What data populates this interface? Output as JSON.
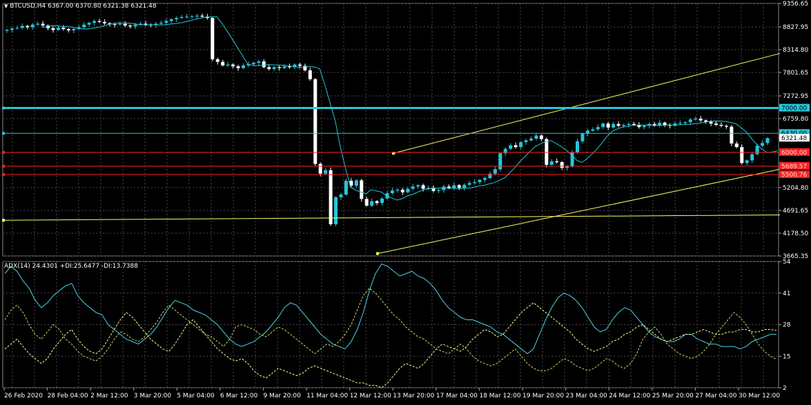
{
  "header": {
    "symbol_line": "BTCUSD,H4  6367.00 6370.80 6321.38 6321.48",
    "indicator_line": "ADX(14) 24.4301 +DI:25.6477 -DI:13.7388"
  },
  "colors": {
    "background": "#000000",
    "grid": "#4b4b4b",
    "bull_candle": "#26c6da",
    "bear_candle": "#ffffff",
    "ma_line": "#26c6da",
    "trend_line": "#ffff66",
    "level_cyan": "#26c6da",
    "level_red": "#ff2020",
    "adx_line": "#4fd3e3",
    "di_plus": "#ffff99",
    "di_minus": "#c8d86a"
  },
  "chart_data": [
    {
      "type": "candlestick",
      "ylim": [
        3665.35,
        9356.65
      ],
      "y_ticks": [
        "9356.65",
        "8827.95",
        "8314.80",
        "7801.65",
        "7272.95",
        "6759.80",
        "6321.48",
        "5204.80",
        "4691.65",
        "4178.50",
        "3665.35"
      ],
      "x_tick_labels": [
        "26 Feb 2020",
        "28 Feb 04:00",
        "2 Mar 12:00",
        "3 Mar 20:00",
        "5 Mar 04:00",
        "6 Mar 12:00",
        "9 Mar 20:00",
        "11 Mar 04:00",
        "12 Mar 12:00",
        "13 Mar 20:00",
        "17 Mar 04:00",
        "18 Mar 12:00",
        "19 Mar 20:00",
        "23 Mar 04:00",
        "24 Mar 12:00",
        "25 Mar 20:00",
        "27 Mar 04:00",
        "30 Mar 12:00"
      ],
      "horizontal_levels": [
        {
          "label": "7000.00",
          "value": 7000.0,
          "color": "#26c6da"
        },
        {
          "label": "6430.00",
          "value": 6430.0,
          "color": "#26c6da"
        },
        {
          "label": "6321.48",
          "value": 6321.48,
          "color": "#ffffff"
        },
        {
          "label": "6000.00",
          "value": 6000.0,
          "color": "#ff2020"
        },
        {
          "label": "5689.57",
          "value": 5689.57,
          "color": "#ff2020"
        },
        {
          "label": "5500.76",
          "value": 5500.76,
          "color": "#ff2020"
        }
      ],
      "trend_lines": [
        {
          "x": [
            547,
            1130
          ],
          "y": [
            3720,
            5620
          ]
        },
        {
          "x": [
            570,
            1130
          ],
          "y": [
            5980,
            8230
          ]
        },
        {
          "x": [
            5,
            1130
          ],
          "y": [
            4470,
            4590
          ]
        }
      ],
      "close": [
        8760,
        8790,
        8805,
        8850,
        8820,
        8880,
        8900,
        8860,
        8800,
        8760,
        8810,
        8780,
        8750,
        8780,
        8820,
        8880,
        8920,
        8960,
        8940,
        8910,
        8890,
        8880,
        8900,
        8860,
        8840,
        8880,
        8900,
        8880,
        8870,
        8900,
        8920,
        8960,
        9000,
        9030,
        9050,
        9060,
        9070,
        9080,
        9060,
        9030,
        8100,
        8040,
        7960,
        7980,
        7940,
        7900,
        7960,
        7990,
        8020,
        8050,
        7920,
        7880,
        7920,
        7900,
        7940,
        7920,
        7980,
        7950,
        7850,
        7650,
        5740,
        5520,
        5600,
        4380,
        4990,
        5050,
        5360,
        5250,
        5370,
        4950,
        4800,
        4900,
        4860,
        4960,
        5080,
        5140,
        5160,
        5100,
        5180,
        5230,
        5260,
        5180,
        5200,
        5130,
        5150,
        5230,
        5190,
        5260,
        5200,
        5270,
        5310,
        5330,
        5380,
        5420,
        5520,
        5620,
        5980,
        6080,
        6160,
        6120,
        6230,
        6270,
        6310,
        6380,
        6300,
        5720,
        5800,
        5780,
        5650,
        5680,
        6000,
        6250,
        6420,
        6490,
        6520,
        6570,
        6650,
        6560,
        6640,
        6600,
        6620,
        6640,
        6620,
        6570,
        6600,
        6640,
        6600,
        6670,
        6620,
        6600,
        6650,
        6660,
        6680,
        6740,
        6760,
        6720,
        6690,
        6650,
        6620,
        6600,
        6580,
        6200,
        6120,
        5760,
        5820,
        5960,
        6150,
        6210,
        6321
      ]
    },
    {
      "type": "line",
      "title": "ADX(14) 24.4301 +DI:25.6477 -DI:13.7388",
      "ylim": [
        2,
        54
      ],
      "y_ticks": [
        "54",
        "41",
        "28",
        "15",
        "2"
      ],
      "series": [
        {
          "name": "ADX",
          "values": [
            49,
            52,
            50,
            46,
            43,
            38,
            35,
            37,
            40,
            42,
            44,
            45,
            40,
            37,
            35,
            33,
            32,
            28,
            26,
            24,
            22,
            21,
            20,
            22,
            24,
            27,
            31,
            35,
            38,
            37,
            36,
            34,
            33,
            32,
            30,
            28,
            25,
            22,
            20,
            19,
            20,
            21,
            23,
            25,
            28,
            31,
            35,
            37,
            36,
            33,
            30,
            27,
            24,
            22,
            20,
            19,
            18,
            21,
            26,
            33,
            42,
            49,
            53,
            52,
            50,
            48,
            49,
            50,
            48,
            47,
            45,
            42,
            38,
            35,
            33,
            31,
            30,
            30,
            29,
            28,
            27,
            25,
            24,
            22,
            20,
            18,
            16,
            18,
            24,
            30,
            35,
            39,
            41,
            40,
            38,
            35,
            31,
            27,
            25,
            26,
            30,
            33,
            35,
            34,
            31,
            28,
            25,
            23,
            22,
            21,
            21,
            22,
            24,
            24,
            22,
            21,
            20,
            20,
            19,
            19,
            19,
            18,
            19,
            21,
            22,
            23,
            24,
            24
          ]
        },
        {
          "name": "+DI",
          "values": [
            18,
            20,
            22,
            19,
            16,
            14,
            12,
            14,
            18,
            21,
            24,
            26,
            22,
            19,
            17,
            16,
            18,
            22,
            26,
            30,
            33,
            31,
            28,
            25,
            22,
            20,
            18,
            17,
            20,
            24,
            28,
            30,
            27,
            24,
            21,
            18,
            16,
            14,
            13,
            14,
            12,
            9,
            7,
            6,
            8,
            10,
            9,
            8,
            7,
            8,
            10,
            11,
            10,
            9,
            8,
            7,
            6,
            5,
            4,
            4,
            3,
            3,
            2,
            4,
            7,
            10,
            12,
            11,
            10,
            12,
            15,
            18,
            20,
            19,
            18,
            17,
            19,
            22,
            24,
            26,
            25,
            23,
            24,
            27,
            30,
            33,
            35,
            37,
            35,
            33,
            31,
            29,
            27,
            25,
            22,
            20,
            18,
            17,
            18,
            19,
            21,
            22,
            24,
            25,
            27,
            28,
            26,
            24,
            22,
            21,
            22,
            23,
            24,
            24,
            25,
            26,
            25,
            24,
            24,
            25,
            25,
            26,
            26,
            25,
            25,
            26,
            26,
            25.6
          ]
        },
        {
          "name": "-DI",
          "values": [
            30,
            34,
            36,
            33,
            28,
            24,
            22,
            25,
            28,
            26,
            22,
            20,
            17,
            15,
            14,
            13,
            15,
            18,
            22,
            25,
            24,
            22,
            21,
            23,
            26,
            29,
            33,
            36,
            34,
            32,
            30,
            28,
            26,
            24,
            23,
            21,
            19,
            22,
            27,
            28,
            27,
            26,
            24,
            23,
            25,
            27,
            26,
            24,
            22,
            20,
            18,
            16,
            18,
            20,
            19,
            21,
            24,
            28,
            34,
            40,
            43,
            41,
            38,
            35,
            32,
            30,
            27,
            25,
            23,
            22,
            20,
            18,
            17,
            16,
            18,
            20,
            18,
            15,
            13,
            12,
            11,
            12,
            14,
            16,
            18,
            15,
            12,
            10,
            9,
            9,
            10,
            12,
            14,
            13,
            11,
            10,
            9,
            10,
            12,
            14,
            13,
            11,
            10,
            12,
            16,
            22,
            25,
            27,
            24,
            20,
            18,
            16,
            15,
            14,
            15,
            17,
            20,
            24,
            27,
            30,
            33,
            31,
            28,
            24,
            20,
            17,
            15,
            13.7
          ]
        }
      ]
    }
  ]
}
